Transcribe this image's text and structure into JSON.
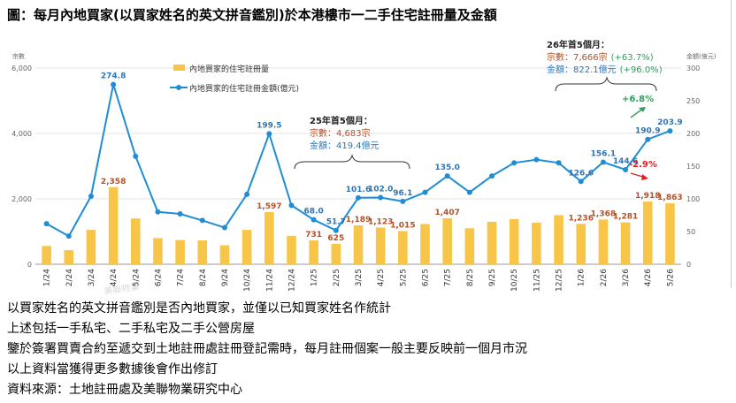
{
  "title": "圖：每月內地買家(以買家姓名的英文拼音鑑別)於本港樓市一二手住宅註冊量及金額",
  "notes": [
    "以買家姓名的英文拼音鑑別是否內地買家，並僅以已知買家姓名作統計",
    "上述包括一手私宅、二手私宅及二手公營房屋",
    "鑒於簽署買賣合約至遞交到土地註冊處註冊登記需時，每月註冊個案一般主要反映前一個月市況",
    "以上資料當獲得更多數據後會作出修訂",
    "資料來源：土地註冊處及美聯物業研究中心"
  ],
  "watermark": "美聯物業",
  "colors": {
    "bar": "#F7C548",
    "line": "#1F8DD6",
    "bar_label": "#B0522A",
    "line_label": "#2E75B6",
    "up": "#2E9E5B",
    "down": "#E02020",
    "bracket": "#333333"
  },
  "chart_data": {
    "type": "bar",
    "categories": [
      "1/24",
      "2/24",
      "3/24",
      "4/24",
      "5/24",
      "6/24",
      "7/24",
      "8/24",
      "9/24",
      "10/24",
      "11/24",
      "12/24",
      "1/25",
      "2/25",
      "3/25",
      "4/25",
      "5/25",
      "6/25",
      "7/25",
      "8/25",
      "9/25",
      "10/25",
      "11/25",
      "12/25",
      "1/26",
      "2/26",
      "3/26",
      "4/26",
      "5/26"
    ],
    "left_axis": {
      "label": "宗數",
      "ylim": [
        0,
        6000
      ],
      "ticks": [
        "0",
        "2,000",
        "4,000",
        "6,000"
      ],
      "tick_values": [
        0,
        2000,
        4000,
        6000
      ]
    },
    "right_axis": {
      "label": "金額(億元)",
      "ylim": [
        0,
        300
      ],
      "ticks": [
        "0",
        "50",
        "100",
        "150",
        "200",
        "250",
        "300"
      ],
      "tick_values": [
        0,
        50,
        100,
        150,
        200,
        250,
        300
      ]
    },
    "series": [
      {
        "name": "內地買家的住宅註冊量",
        "kind": "bar",
        "axis": "left",
        "values": [
          560,
          430,
          1050,
          2358,
          1400,
          800,
          740,
          730,
          580,
          1050,
          1597,
          870,
          731,
          625,
          1189,
          1123,
          1015,
          1230,
          1407,
          1100,
          1300,
          1380,
          1270,
          1500,
          1236,
          1368,
          1281,
          1918,
          1863
        ]
      },
      {
        "name": "內地買家的住宅註冊金額(億元)",
        "kind": "line",
        "axis": "right",
        "values": [
          62,
          43,
          104,
          274.8,
          165,
          80,
          77,
          67,
          56,
          107,
          199.5,
          90,
          68.0,
          51.7,
          101.6,
          102.0,
          96.1,
          110,
          135.0,
          110,
          135,
          155,
          160,
          155,
          126.6,
          156.1,
          144.6,
          190.9,
          203.9
        ]
      }
    ],
    "bar_labels": [
      {
        "i": 3,
        "text": "2,358"
      },
      {
        "i": 10,
        "text": "1,597"
      },
      {
        "i": 12,
        "text": "731"
      },
      {
        "i": 13,
        "text": "625"
      },
      {
        "i": 14,
        "text": "1,189"
      },
      {
        "i": 15,
        "text": "1,123"
      },
      {
        "i": 16,
        "text": "1,015"
      },
      {
        "i": 18,
        "text": "1,407"
      },
      {
        "i": 24,
        "text": "1,236"
      },
      {
        "i": 25,
        "text": "1,368"
      },
      {
        "i": 26,
        "text": "1,281"
      },
      {
        "i": 27,
        "text": "1,918"
      },
      {
        "i": 28,
        "text": "1,863"
      }
    ],
    "line_labels": [
      {
        "i": 3,
        "text": "274.8"
      },
      {
        "i": 10,
        "text": "199.5"
      },
      {
        "i": 12,
        "text": "68.0"
      },
      {
        "i": 13,
        "text": "51.7"
      },
      {
        "i": 14,
        "text": "101.6"
      },
      {
        "i": 15,
        "text": "102.0"
      },
      {
        "i": 16,
        "text": "96.1"
      },
      {
        "i": 18,
        "text": "135.0"
      },
      {
        "i": 24,
        "text": "126.6"
      },
      {
        "i": 25,
        "text": "156.1"
      },
      {
        "i": 26,
        "text": "144.6"
      },
      {
        "i": 27,
        "text": "190.9"
      },
      {
        "i": 28,
        "text": "203.9"
      }
    ],
    "annotations": {
      "y25": {
        "heading": "25年首5個月：",
        "count_label": "宗數：",
        "count_value": "4,683宗",
        "amount_label": "金額：",
        "amount_value": "419.4億元"
      },
      "y26": {
        "heading": "26年首5個月：",
        "count_label": "宗數：",
        "count_value": "7,666宗",
        "count_change": "(+63.7%)",
        "amount_label": "金額：",
        "amount_value": "822.1億元",
        "amount_change": "(+96.0%)"
      },
      "up_change": "+6.8%",
      "down_change": "-2.9%"
    },
    "legend_position": "top-left"
  }
}
